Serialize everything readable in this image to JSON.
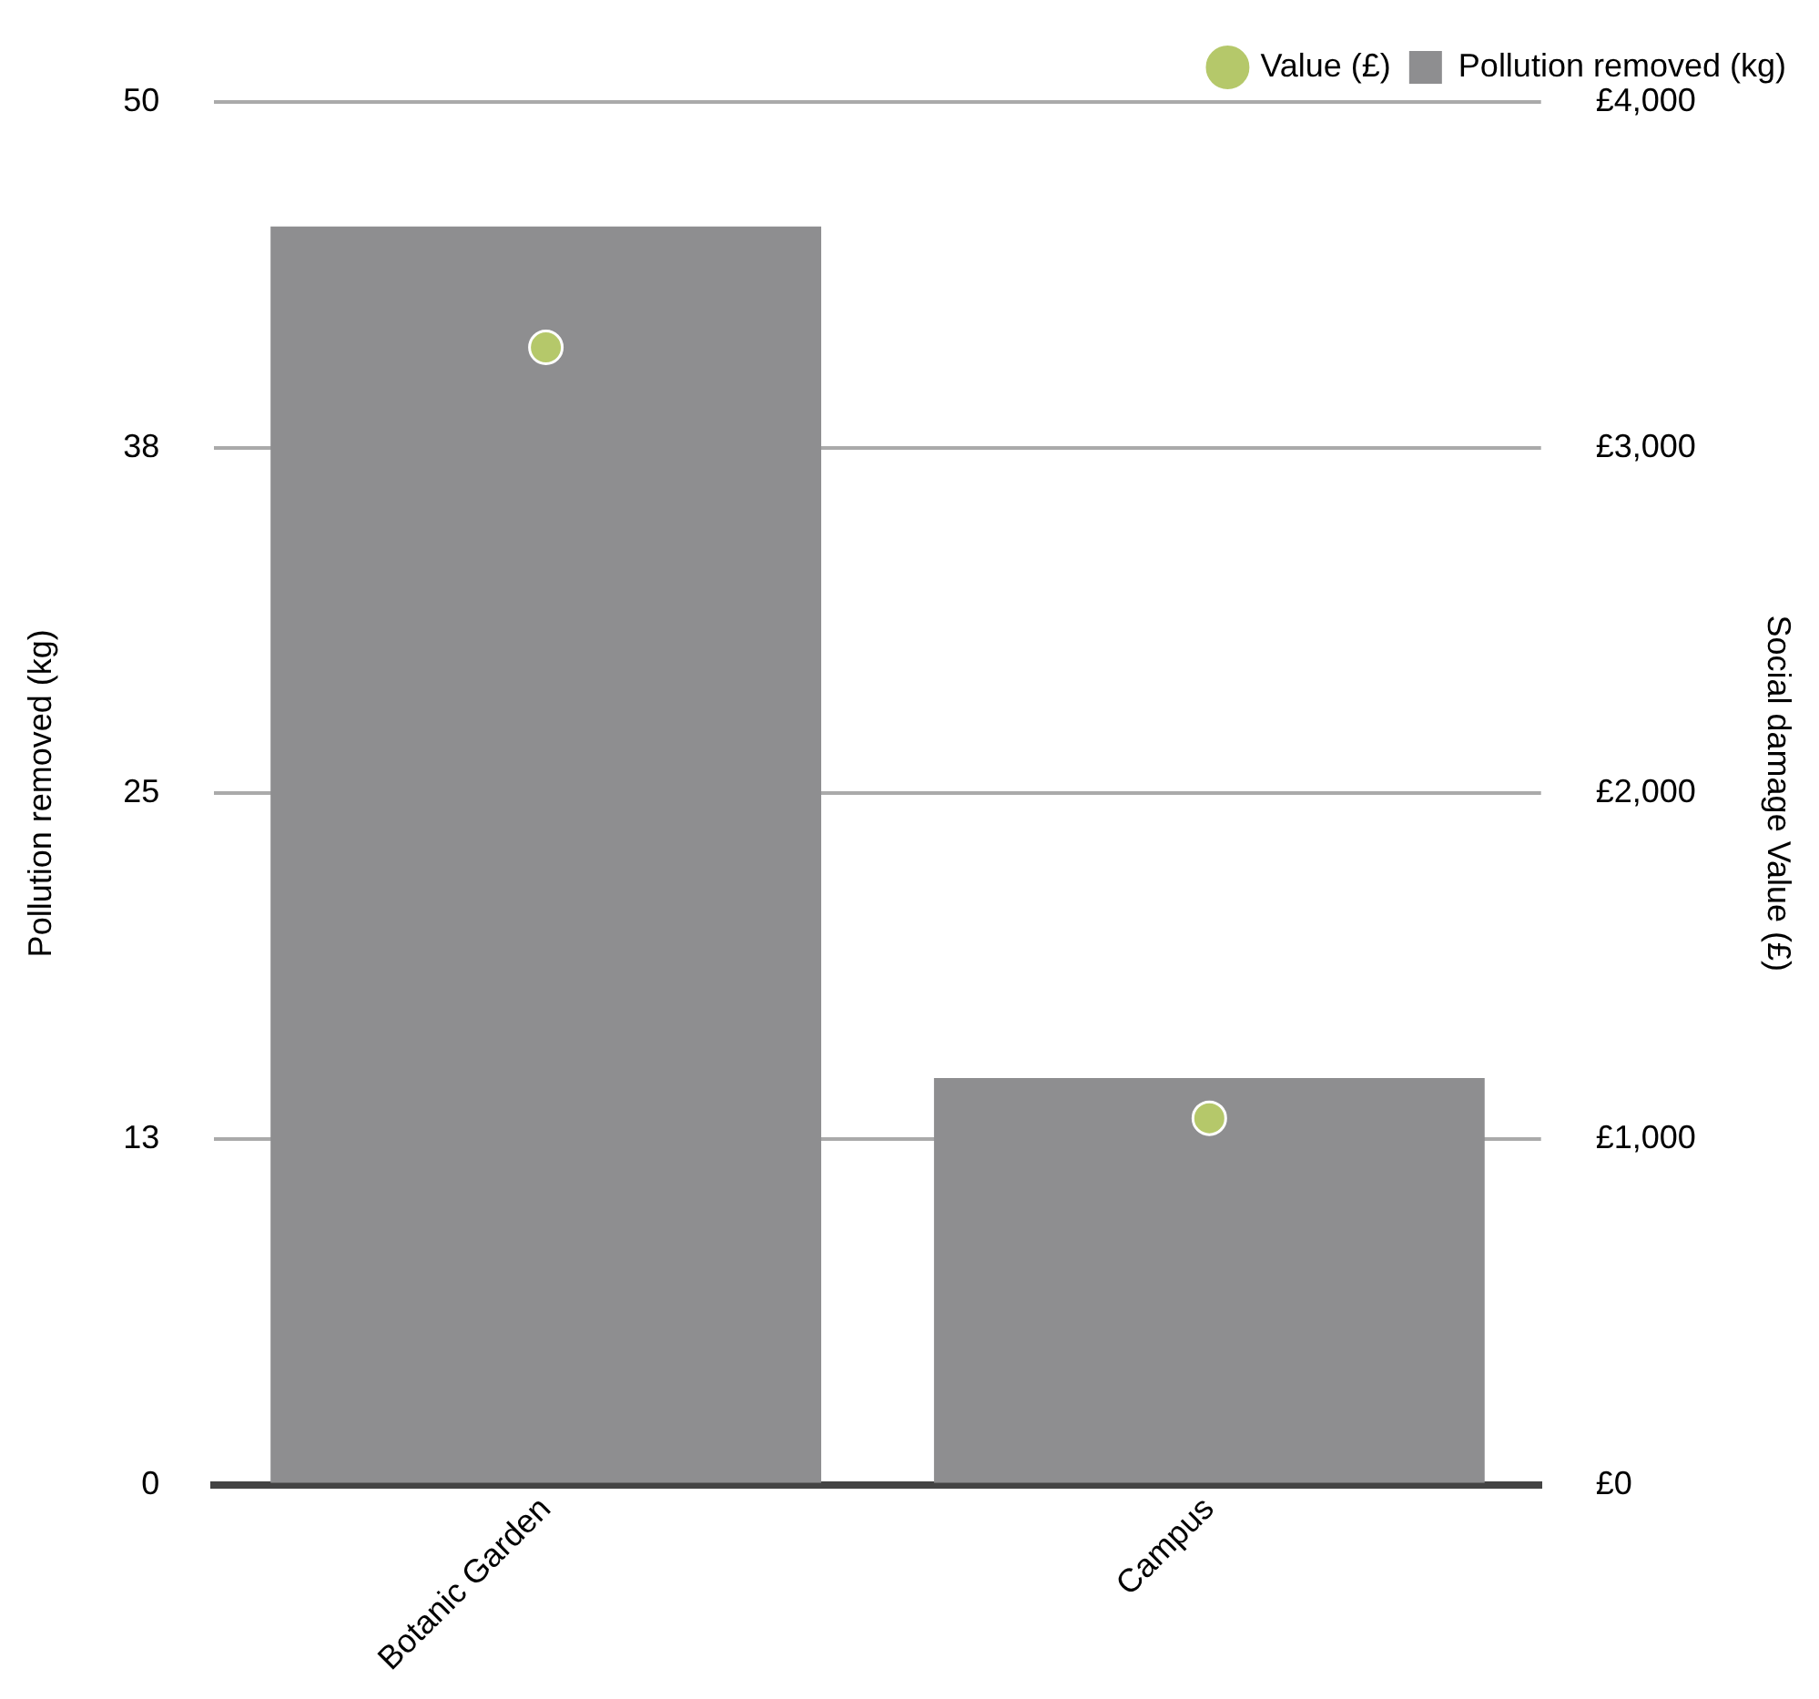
{
  "chart_data": {
    "type": "bar",
    "ylabel": "Pollution removed (kg)",
    "y2label": "Social damage Value (£)",
    "categories": [
      "Botanic Garden",
      "Campus"
    ],
    "series": [
      {
        "name": "Pollution removed (kg)",
        "color": "#8e8e90",
        "values": [
          45.5,
          14.7
        ]
      },
      {
        "name": "Value (£)",
        "type": "scatter",
        "axis": "y2",
        "color": "#b5c86a",
        "values": [
          3290,
          1060
        ]
      }
    ],
    "ylim": [
      0,
      50
    ],
    "yticks": [
      0,
      {
        "value": 12.5,
        "label": "13"
      },
      25,
      {
        "value": 37.5,
        "label": "38"
      },
      50
    ],
    "y2lim": [
      0,
      4000
    ],
    "y2ticks": [
      {
        "value": 0,
        "label": "£0"
      },
      {
        "value": 1000,
        "label": "£1,000"
      },
      {
        "value": 2000,
        "label": "£2,000"
      },
      {
        "value": 3000,
        "label": "£3,000"
      },
      {
        "value": 4000,
        "label": "£4,000"
      }
    ],
    "grid": "y",
    "legend": "top right",
    "marker": "circle"
  }
}
